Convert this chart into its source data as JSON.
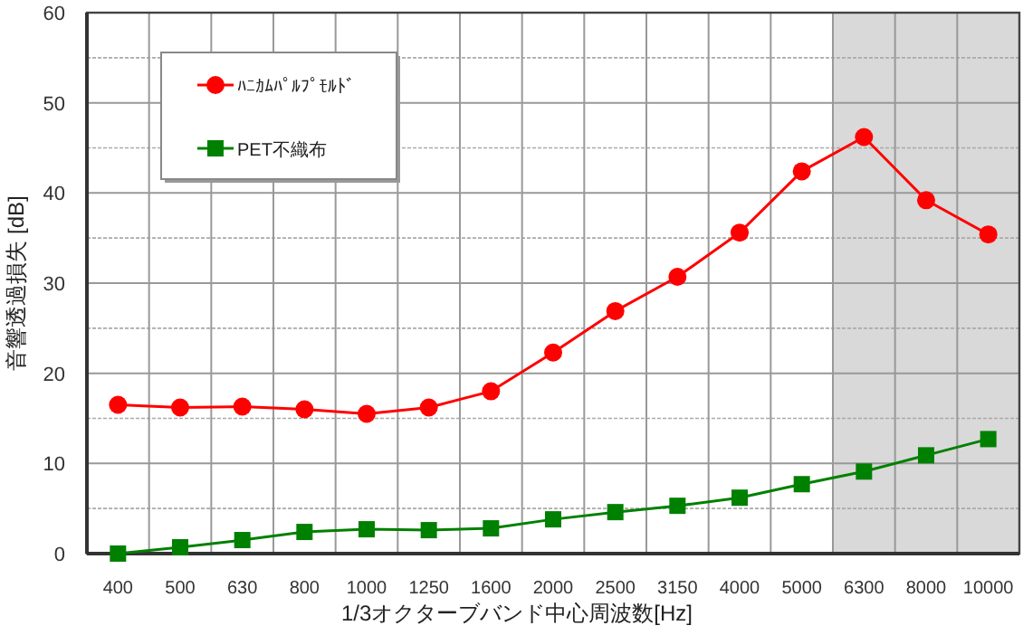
{
  "chart_data": {
    "type": "line",
    "xlabel": "1/3オクターブバンド中心周波数[Hz]",
    "ylabel": "音響透過損失 [dB]",
    "categories": [
      "400",
      "500",
      "630",
      "800",
      "1000",
      "1250",
      "1600",
      "2000",
      "2500",
      "3150",
      "4000",
      "5000",
      "6300",
      "8000",
      "10000"
    ],
    "series": [
      {
        "name": "ﾊﾆｶﾑﾊﾟﾙﾌﾟﾓﾙﾄﾞ",
        "color": "#ff0000",
        "marker": "circle",
        "values": [
          16.5,
          16.2,
          16.3,
          16.0,
          15.5,
          16.2,
          18.0,
          22.3,
          26.9,
          30.7,
          35.6,
          42.4,
          46.2,
          39.2,
          35.4
        ]
      },
      {
        "name": "PET不織布",
        "color": "#008000",
        "marker": "square",
        "values": [
          0,
          0.7,
          1.5,
          2.4,
          2.7,
          2.6,
          2.8,
          3.8,
          4.6,
          5.3,
          6.2,
          7.7,
          9.1,
          10.9,
          12.7
        ]
      }
    ],
    "ylim": [
      0,
      60
    ],
    "yticks": [
      0,
      10,
      20,
      30,
      40,
      50,
      60
    ],
    "grid": true,
    "legend": "top left",
    "bands": [
      {
        "axis": "x",
        "from": "6300",
        "to": "10000",
        "color": "#d9d9d9"
      }
    ]
  }
}
